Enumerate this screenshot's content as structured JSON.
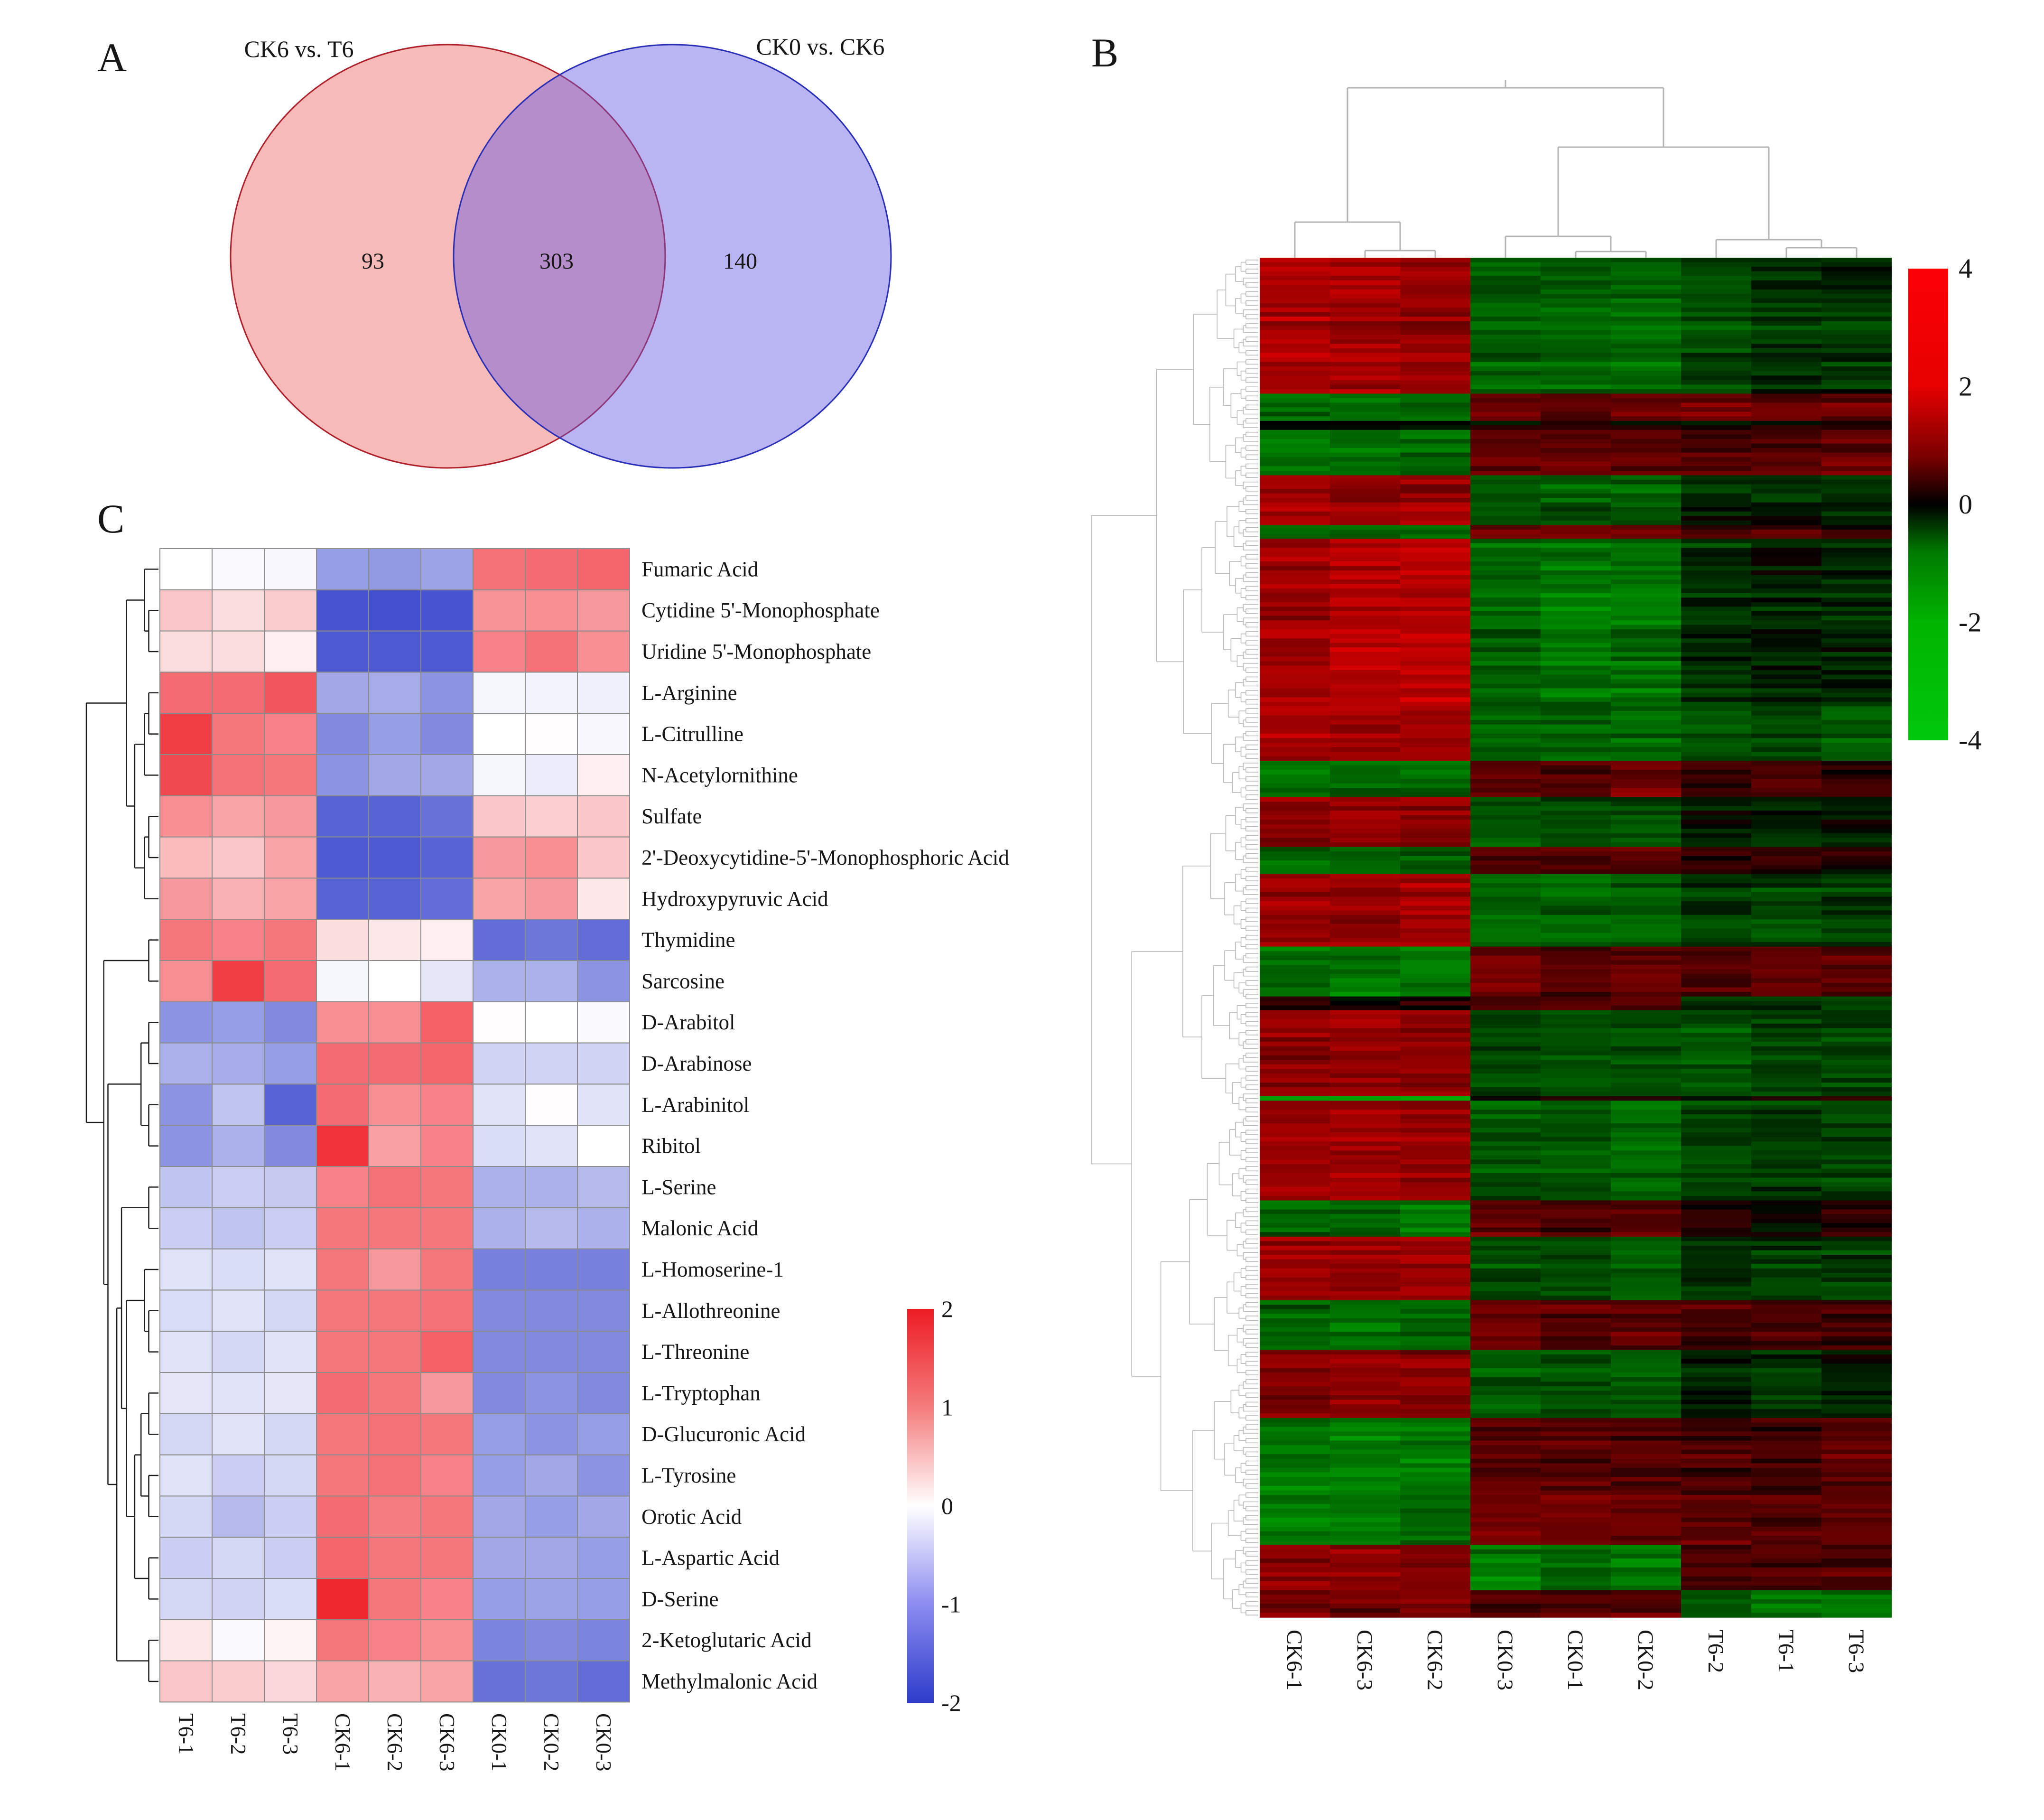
{
  "panels": {
    "a": {
      "label": "A"
    },
    "b": {
      "label": "B"
    },
    "c": {
      "label": "C"
    }
  },
  "render_seed": 20240613,
  "chart_data": [
    {
      "id": "A",
      "type": "venn",
      "sets": [
        {
          "label": "CK6 vs. T6",
          "fill": "rgb(233,90,85)",
          "fill_opacity": 0.42,
          "stroke": "#b0202c"
        },
        {
          "label": "CK0 vs. CK6",
          "fill": "rgb(95,85,226)",
          "fill_opacity": 0.44,
          "stroke": "#2a2fb8"
        }
      ],
      "left_only": 93,
      "overlap": 303,
      "right_only": 140
    },
    {
      "id": "B",
      "type": "heatmap",
      "columns": [
        "CK6-1",
        "CK6-3",
        "CK6-2",
        "CK0-3",
        "CK0-1",
        "CK0-2",
        "T6-2",
        "T6-1",
        "T6-3"
      ],
      "column_groups": [
        "CK6",
        "CK6",
        "CK6",
        "CK0",
        "CK0",
        "CK0",
        "T6",
        "T6",
        "T6"
      ],
      "rows_note": "several hundred unlabeled metabolite rows, hierarchically clustered",
      "n_rows_rendered": 300,
      "value_range": [
        -4,
        4
      ],
      "colorbar_ticks": [
        "4",
        "2",
        "0",
        "-2",
        "-4"
      ],
      "colormap": {
        "positive": "#ff0000",
        "zero": "#000000",
        "negative": "#00c80c"
      },
      "colorbar_stops": [
        "#fb0007 0%",
        "#e60000 25%",
        "#7a0000 40%",
        "#000000 50%",
        "#007a00 60%",
        "#00b400 75%",
        "#00c80c 100%"
      ],
      "row_bands": [
        {
          "frac": 0.095,
          "CK6": 2.4,
          "CK0": -1.7,
          "T6": -0.9
        },
        {
          "frac": 0.02,
          "CK6": -1.6,
          "CK0": 1.3,
          "T6": 1.4
        },
        {
          "frac": 0.008,
          "CK6": 0.2,
          "CK0": 0.1,
          "T6": 0.4
        },
        {
          "frac": 0.03,
          "CK6": -1.9,
          "CK0": 1.3,
          "T6": 1.2
        },
        {
          "frac": 0.035,
          "CK6": 2.2,
          "CK0": -1.5,
          "T6": -0.6
        },
        {
          "frac": 0.012,
          "CK6": -1.7,
          "CK0": 1.5,
          "T6": 0.6
        },
        {
          "frac": 0.115,
          "CK6": 2.5,
          "CK0": -1.8,
          "T6": -0.7
        },
        {
          "frac": 0.04,
          "CK6": 2.1,
          "CK0": -1.6,
          "T6": -1.4
        },
        {
          "frac": 0.025,
          "CK6": -1.7,
          "CK0": 1.4,
          "T6": 0.8
        },
        {
          "frac": 0.035,
          "CK6": 2.0,
          "CK0": -1.3,
          "T6": -0.4
        },
        {
          "frac": 0.022,
          "CK6": -1.6,
          "CK0": 1.2,
          "T6": 0.6
        },
        {
          "frac": 0.05,
          "CK6": 2.2,
          "CK0": -1.7,
          "T6": -0.8
        },
        {
          "frac": 0.035,
          "CK6": -1.8,
          "CK0": 1.3,
          "T6": 1.1
        },
        {
          "frac": 0.01,
          "CK6": 0.1,
          "CK0": 1.2,
          "T6": -0.8
        },
        {
          "frac": 0.06,
          "CK6": 2.1,
          "CK0": -1.2,
          "T6": -1.3
        },
        {
          "frac": 0.004,
          "CK6": -2.8,
          "CK0": 0.1,
          "T6": 0.2
        },
        {
          "frac": 0.07,
          "CK6": 2.3,
          "CK0": -1.5,
          "T6": -1.0
        },
        {
          "frac": 0.025,
          "CK6": -1.7,
          "CK0": 1.2,
          "T6": 0.3
        },
        {
          "frac": 0.045,
          "CK6": 2.2,
          "CK0": -1.4,
          "T6": -0.9
        },
        {
          "frac": 0.035,
          "CK6": -1.8,
          "CK0": 1.4,
          "T6": 0.9
        },
        {
          "frac": 0.05,
          "CK6": 2.0,
          "CK0": -1.4,
          "T6": -0.6
        },
        {
          "frac": 0.04,
          "CK6": -1.9,
          "CK0": 1.3,
          "T6": 1.0
        },
        {
          "frac": 0.05,
          "CK6": -2.1,
          "CK0": 1.4,
          "T6": 1.1
        },
        {
          "frac": 0.03,
          "CK6": 1.8,
          "CK0": -1.9,
          "T6": 1.0
        },
        {
          "frac": 0.02,
          "CK6": 1.6,
          "CK0": 1.2,
          "T6": -1.6
        }
      ]
    },
    {
      "id": "C",
      "type": "heatmap",
      "columns": [
        "T6-1",
        "T6-2",
        "T6-3",
        "CK6-1",
        "CK6-2",
        "CK6-3",
        "CK0-1",
        "CK0-2",
        "CK0-3"
      ],
      "rows": [
        "Fumaric Acid",
        "Cytidine 5'-Monophosphate",
        "Uridine 5'-Monophosphate",
        "L-Arginine",
        "L-Citrulline",
        "N-Acetylornithine",
        "Sulfate",
        "2'-Deoxycytidine-5'-Monophosphoric Acid",
        "Hydroxypyruvic Acid",
        "Thymidine",
        "Sarcosine",
        "D-Arabitol",
        "D-Arabinose",
        "L-Arabinitol",
        "Ribitol",
        "L-Serine",
        "Malonic Acid",
        "L-Homoserine-1",
        "L-Allothreonine",
        "L-Threonine",
        "L-Tryptophan",
        "D-Glucuronic Acid",
        "L-Tyrosine",
        "Orotic Acid",
        "L-Aspartic Acid",
        "D-Serine",
        "2-Ketoglutaric Acid",
        "Methylmalonic Acid"
      ],
      "values": [
        [
          0.0,
          -0.05,
          -0.08,
          -1.0,
          -1.05,
          -0.95,
          1.25,
          1.3,
          1.35
        ],
        [
          0.5,
          0.3,
          0.45,
          -1.75,
          -1.8,
          -1.75,
          0.95,
          1.0,
          0.9
        ],
        [
          0.3,
          0.3,
          0.15,
          -1.7,
          -1.7,
          -1.7,
          1.1,
          1.25,
          1.0
        ],
        [
          1.3,
          1.3,
          1.5,
          -0.9,
          -0.85,
          -1.1,
          -0.1,
          -0.12,
          -0.15
        ],
        [
          1.7,
          1.2,
          1.1,
          -1.2,
          -1.0,
          -1.2,
          0.0,
          0.02,
          -0.08
        ],
        [
          1.6,
          1.25,
          1.2,
          -1.1,
          -0.9,
          -0.9,
          -0.1,
          -0.2,
          0.15
        ],
        [
          1.0,
          0.8,
          0.9,
          -1.6,
          -1.6,
          -1.45,
          0.5,
          0.42,
          0.5
        ],
        [
          0.6,
          0.5,
          0.8,
          -1.7,
          -1.7,
          -1.6,
          0.9,
          1.0,
          0.5
        ],
        [
          0.9,
          0.7,
          0.8,
          -1.6,
          -1.6,
          -1.5,
          0.8,
          0.9,
          0.2
        ],
        [
          1.2,
          1.1,
          1.2,
          0.3,
          0.2,
          0.15,
          -1.5,
          -1.4,
          -1.5
        ],
        [
          1.0,
          1.7,
          1.3,
          -0.1,
          0.0,
          -0.25,
          -0.8,
          -0.8,
          -1.1
        ],
        [
          -1.1,
          -1.0,
          -1.2,
          1.0,
          1.0,
          1.4,
          0.02,
          0.0,
          -0.05
        ],
        [
          -0.8,
          -0.85,
          -1.0,
          1.3,
          1.3,
          1.35,
          -0.45,
          -0.45,
          -0.45
        ],
        [
          -1.1,
          -0.6,
          -1.6,
          1.3,
          1.0,
          1.1,
          -0.3,
          0.02,
          -0.3
        ],
        [
          -1.1,
          -0.8,
          -1.2,
          1.8,
          0.85,
          1.1,
          -0.35,
          -0.3,
          0.0
        ],
        [
          -0.6,
          -0.5,
          -0.55,
          1.1,
          1.25,
          1.2,
          -0.8,
          -0.8,
          -0.7
        ],
        [
          -0.5,
          -0.6,
          -0.5,
          1.2,
          1.2,
          1.2,
          -0.8,
          -0.7,
          -0.8
        ],
        [
          -0.3,
          -0.35,
          -0.3,
          1.2,
          0.9,
          1.2,
          -1.3,
          -1.3,
          -1.3
        ],
        [
          -0.35,
          -0.3,
          -0.4,
          1.2,
          1.2,
          1.25,
          -1.2,
          -1.2,
          -1.2
        ],
        [
          -0.3,
          -0.4,
          -0.3,
          1.2,
          1.2,
          1.4,
          -1.2,
          -1.2,
          -1.2
        ],
        [
          -0.25,
          -0.3,
          -0.25,
          1.3,
          1.2,
          0.9,
          -1.2,
          -1.1,
          -1.2
        ],
        [
          -0.4,
          -0.3,
          -0.4,
          1.2,
          1.25,
          1.2,
          -1.0,
          -1.1,
          -1.0
        ],
        [
          -0.3,
          -0.5,
          -0.4,
          1.2,
          1.25,
          1.1,
          -1.0,
          -0.9,
          -1.1
        ],
        [
          -0.4,
          -0.7,
          -0.5,
          1.3,
          1.15,
          1.2,
          -0.9,
          -1.0,
          -0.9
        ],
        [
          -0.5,
          -0.4,
          -0.5,
          1.35,
          1.2,
          1.2,
          -0.9,
          -0.9,
          -1.0
        ],
        [
          -0.4,
          -0.45,
          -0.35,
          1.9,
          1.2,
          1.1,
          -1.0,
          -0.95,
          -1.0
        ],
        [
          0.2,
          -0.05,
          0.1,
          1.2,
          1.1,
          1.0,
          -1.25,
          -1.2,
          -1.25
        ],
        [
          0.5,
          0.45,
          0.35,
          0.8,
          0.7,
          0.8,
          -1.45,
          -1.4,
          -1.5
        ]
      ],
      "value_range": [
        -2,
        2
      ],
      "colorbar_ticks": [
        "2",
        "1",
        "0",
        "-1",
        "-2"
      ],
      "colormap": {
        "positive": "#ed1c24",
        "zero": "#ffffff",
        "negative": "#2d3cca"
      },
      "colorbar_stops": [
        "#ed1c24 0%",
        "#f47c7c 25%",
        "#ffffff 50%",
        "#8c8cf0 75%",
        "#2d3cca 100%"
      ],
      "grid_color": "#8c8c8c",
      "row_dendrogram": [
        [
          [
            0,
            [
              1,
              2
            ]
          ],
          [
            [
              [
                3,
                4
              ],
              5
            ],
            [
              [
                6,
                7
              ],
              8
            ]
          ]
        ],
        [
          [
            9,
            10
          ],
          [
            [
              [
                11,
                12
              ],
              [
                13,
                14
              ]
            ],
            [
              [
                [
                  15,
                  16
                ],
                [
                  [
                    17,
                    [
                      18,
                      19
                    ]
                  ],
                  [
                    [
                      [
                        20,
                        21
                      ],
                      [
                        22,
                        23
                      ]
                    ],
                    [
                      24,
                      25
                    ]
                  ]
                ]
              ],
              [
                26,
                27
              ]
            ]
          ]
        ]
      ]
    }
  ]
}
